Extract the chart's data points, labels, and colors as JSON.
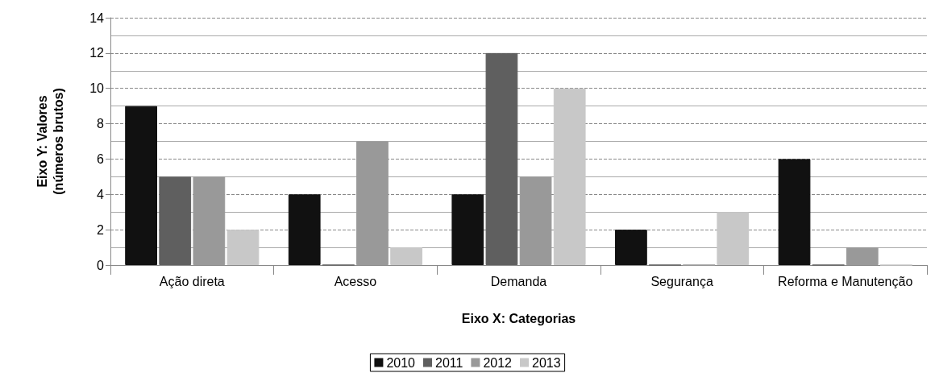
{
  "chart_data": {
    "type": "bar",
    "xlabel": "Eixo X: Categorias",
    "ylabel": "Eixo Y: Valores\n(números brutos)",
    "categories": [
      "Ação direta",
      "Acesso",
      "Demanda",
      "Segurança",
      "Reforma e Manutenção"
    ],
    "series": [
      {
        "name": "2010",
        "color": "#111111",
        "values": [
          9,
          4,
          4,
          2,
          6
        ]
      },
      {
        "name": "2011",
        "color": "#5f5f5f",
        "values": [
          5,
          0,
          12,
          0,
          0
        ]
      },
      {
        "name": "2012",
        "color": "#999999",
        "values": [
          5,
          7,
          5,
          0,
          1
        ]
      },
      {
        "name": "2013",
        "color": "#c8c8c8",
        "values": [
          2,
          1,
          10,
          3,
          0
        ]
      }
    ],
    "ylim": [
      0,
      14
    ],
    "yticks": [
      0,
      2,
      4,
      6,
      8,
      10,
      12,
      14
    ],
    "grid": "y",
    "legend": "bottom"
  }
}
